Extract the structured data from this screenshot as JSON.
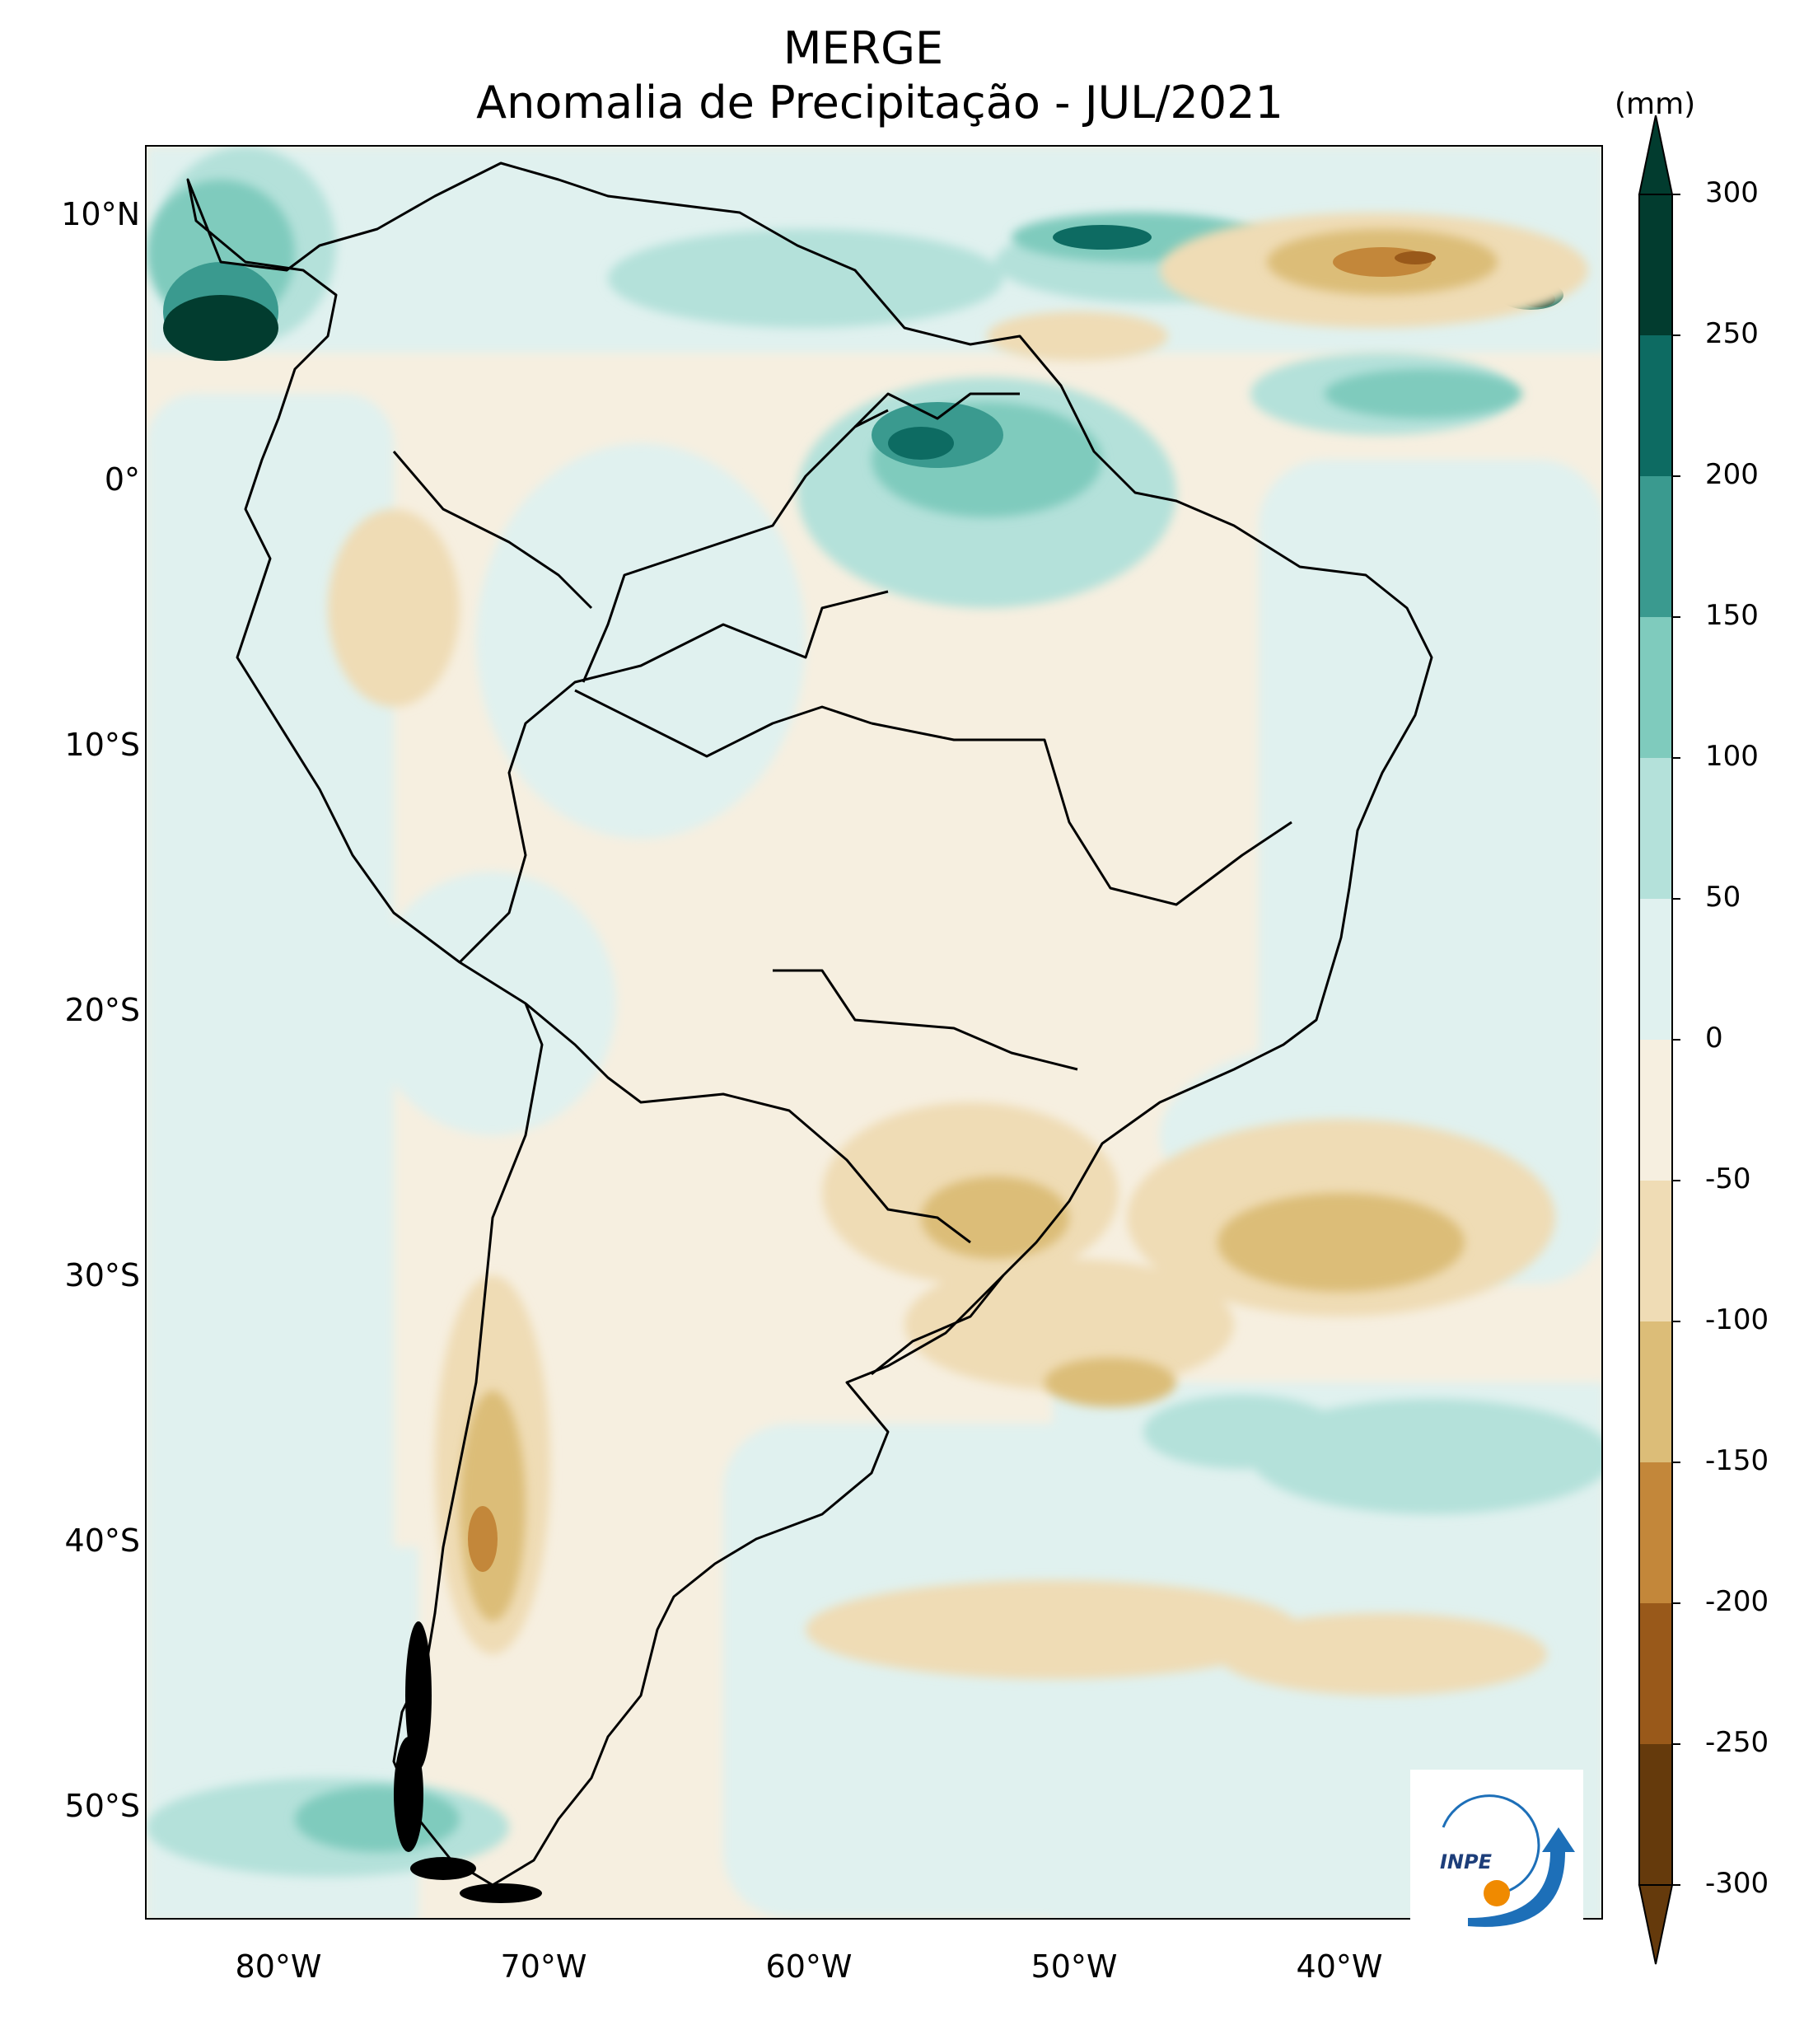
{
  "title": "MERGE",
  "subtitle": "Anomalia de Precipitação - JUL/2021",
  "unit": "(mm)",
  "lat_labels": [
    "10°N",
    "0°",
    "10°S",
    "20°S",
    "30°S",
    "40°S",
    "50°S"
  ],
  "lon_labels": [
    "80°W",
    "70°W",
    "60°W",
    "50°W",
    "40°W"
  ],
  "colorbar": {
    "levels": [
      "300",
      "250",
      "200",
      "150",
      "100",
      "50",
      "0",
      "-50",
      "-100",
      "-150",
      "-200",
      "-250",
      "-300"
    ],
    "colors": [
      "#023c2f",
      "#0d6b62",
      "#3a9a8f",
      "#7fcbbd",
      "#b4e1da",
      "#e0f1ef",
      "#f6efe0",
      "#efdcb5",
      "#dcbd78",
      "#c3873a",
      "#99591a",
      "#653a0c"
    ]
  },
  "chart_data": {
    "type": "filled-contour-map",
    "title": "MERGE",
    "subtitle": "Anomalia de Precipitação - JUL/2021",
    "variable": "Precipitation anomaly",
    "unit": "mm",
    "extent": {
      "lon": [
        -85,
        -30
      ],
      "lat": [
        -56,
        13
      ]
    },
    "contour_levels": [
      -300,
      -250,
      -200,
      -150,
      -100,
      -50,
      0,
      50,
      100,
      150,
      200,
      250,
      300
    ],
    "features": [
      {
        "name": "Panama / Colombian Pacific",
        "range_mm": [
          150,
          300
        ],
        "sign": "positive"
      },
      {
        "name": "Northern Pará / Amapá",
        "range_mm": [
          100,
          250
        ],
        "sign": "positive"
      },
      {
        "name": "Tropical Atlantic ITCZ band",
        "range_mm": [
          50,
          300
        ],
        "sign": "positive"
      },
      {
        "name": "Equatorial Atlantic near 10°N, 35°W",
        "range_mm": [
          -200,
          -50
        ],
        "sign": "negative"
      },
      {
        "name": "Southern Brazil / Rio Grande do Sul",
        "range_mm": [
          -150,
          -50
        ],
        "sign": "negative"
      },
      {
        "name": "South Atlantic off Uruguay",
        "range_mm": [
          -150,
          -50
        ],
        "sign": "negative"
      },
      {
        "name": "Southern Andes (Chile/Argentina 35–45°S)",
        "range_mm": [
          -200,
          -50
        ],
        "sign": "negative"
      },
      {
        "name": "Southern Chilean coast",
        "range_mm": [
          50,
          150
        ],
        "sign": "positive"
      }
    ]
  },
  "logo": {
    "text": "INPE"
  }
}
